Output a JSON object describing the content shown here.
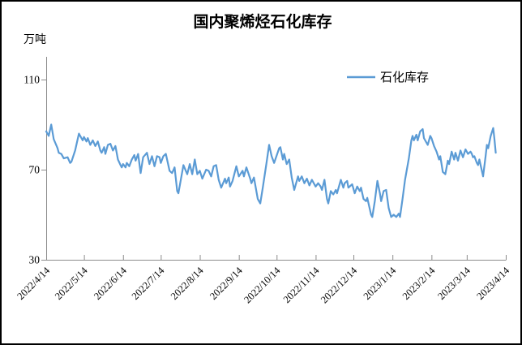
{
  "chart_data": {
    "type": "line",
    "title": "国内聚烯烃石化库存",
    "unit_label": "万吨",
    "legend": {
      "label": "石化库存",
      "position": "top-right-inside"
    },
    "series_color": "#5B9BD5",
    "axis_color": "#8C8C8C",
    "grid": false,
    "ylim": [
      30,
      110
    ],
    "yticks": [
      30,
      70,
      110
    ],
    "x_total_days": 365,
    "x_tick_labels": [
      "2022/4/14",
      "2022/5/14",
      "2022/6/14",
      "2022/7/14",
      "2022/8/14",
      "2022/9/14",
      "2022/10/14",
      "2022/11/14",
      "2022/12/14",
      "2023/1/14",
      "2023/2/14",
      "2023/3/14",
      "2023/4/14"
    ],
    "x_tick_days": [
      0,
      30,
      61,
      91,
      122,
      153,
      183,
      214,
      244,
      275,
      306,
      334,
      365
    ],
    "points_day_value": [
      [
        0,
        87
      ],
      [
        2,
        85
      ],
      [
        4,
        90
      ],
      [
        6,
        83.5
      ],
      [
        9,
        79.5
      ],
      [
        10,
        77.5
      ],
      [
        12,
        77
      ],
      [
        14,
        75
      ],
      [
        17,
        75.5
      ],
      [
        19,
        73
      ],
      [
        20,
        73.5
      ],
      [
        23,
        78.5
      ],
      [
        25,
        83.5
      ],
      [
        26,
        86
      ],
      [
        29,
        83
      ],
      [
        30,
        84.5
      ],
      [
        32,
        82.5
      ],
      [
        33,
        84
      ],
      [
        35,
        81
      ],
      [
        37,
        83
      ],
      [
        39,
        80.5
      ],
      [
        41,
        82.5
      ],
      [
        43,
        78.5
      ],
      [
        44,
        77.5
      ],
      [
        46,
        80
      ],
      [
        47,
        77
      ],
      [
        49,
        81
      ],
      [
        51,
        81.5
      ],
      [
        53,
        78.5
      ],
      [
        55,
        80.5
      ],
      [
        57,
        74.5
      ],
      [
        59,
        72
      ],
      [
        60,
        71
      ],
      [
        61,
        72.5
      ],
      [
        63,
        71
      ],
      [
        64,
        73
      ],
      [
        66,
        71.5
      ],
      [
        68,
        74.5
      ],
      [
        70,
        76.5
      ],
      [
        71,
        74
      ],
      [
        73,
        77
      ],
      [
        75,
        68.5
      ],
      [
        77,
        75.5
      ],
      [
        80,
        77.5
      ],
      [
        82,
        72.5
      ],
      [
        84,
        76
      ],
      [
        86,
        71.5
      ],
      [
        88,
        76
      ],
      [
        90,
        75.5
      ],
      [
        91,
        73
      ],
      [
        93,
        76
      ],
      [
        95,
        77
      ],
      [
        98,
        69.5
      ],
      [
        100,
        68.5
      ],
      [
        102,
        71
      ],
      [
        104,
        60.5
      ],
      [
        105,
        59.5
      ],
      [
        109,
        72
      ],
      [
        112,
        68
      ],
      [
        114,
        72.5
      ],
      [
        116,
        68
      ],
      [
        118,
        74.5
      ],
      [
        120,
        68
      ],
      [
        122,
        69.5
      ],
      [
        124,
        66
      ],
      [
        127,
        70
      ],
      [
        129,
        69.5
      ],
      [
        131,
        67
      ],
      [
        133,
        71.5
      ],
      [
        135,
        72
      ],
      [
        137,
        65.5
      ],
      [
        139,
        62
      ],
      [
        142,
        66
      ],
      [
        143,
        64
      ],
      [
        145,
        66.5
      ],
      [
        146,
        62.5
      ],
      [
        148,
        65
      ],
      [
        151,
        71.5
      ],
      [
        153,
        67
      ],
      [
        156,
        69.5
      ],
      [
        157,
        67
      ],
      [
        159,
        71
      ],
      [
        162,
        66
      ],
      [
        163,
        64
      ],
      [
        165,
        66.5
      ],
      [
        168,
        57
      ],
      [
        170,
        55
      ],
      [
        172,
        62
      ],
      [
        175,
        73
      ],
      [
        177,
        81
      ],
      [
        179,
        76
      ],
      [
        181,
        73
      ],
      [
        185,
        79.5
      ],
      [
        186,
        80
      ],
      [
        188,
        74.5
      ],
      [
        189,
        77
      ],
      [
        191,
        72.5
      ],
      [
        193,
        74.5
      ],
      [
        195,
        66.5
      ],
      [
        197,
        61
      ],
      [
        200,
        67
      ],
      [
        201,
        65
      ],
      [
        203,
        67
      ],
      [
        205,
        64
      ],
      [
        207,
        66
      ],
      [
        209,
        63
      ],
      [
        211,
        65.5
      ],
      [
        214,
        62.5
      ],
      [
        216,
        64
      ],
      [
        218,
        62.5
      ],
      [
        219,
        61
      ],
      [
        221,
        65.5
      ],
      [
        223,
        57
      ],
      [
        224,
        55
      ],
      [
        226,
        60.5
      ],
      [
        228,
        59
      ],
      [
        230,
        61
      ],
      [
        231,
        59.5
      ],
      [
        234,
        65.5
      ],
      [
        236,
        62
      ],
      [
        237,
        64
      ],
      [
        239,
        65
      ],
      [
        240,
        62
      ],
      [
        243,
        63.5
      ],
      [
        245,
        59.5
      ],
      [
        247,
        62.5
      ],
      [
        249,
        60.5
      ],
      [
        250,
        62
      ],
      [
        252,
        57
      ],
      [
        254,
        56
      ],
      [
        255,
        57.5
      ],
      [
        258,
        50
      ],
      [
        259,
        49
      ],
      [
        261,
        56
      ],
      [
        263,
        65
      ],
      [
        265,
        59.5
      ],
      [
        266,
        56
      ],
      [
        268,
        60.5
      ],
      [
        270,
        61
      ],
      [
        272,
        53
      ],
      [
        274,
        49
      ],
      [
        276,
        50
      ],
      [
        278,
        49
      ],
      [
        280,
        50.5
      ],
      [
        281,
        49
      ],
      [
        283,
        57
      ],
      [
        285,
        65.5
      ],
      [
        288,
        75
      ],
      [
        290,
        83
      ],
      [
        291,
        85
      ],
      [
        292,
        83
      ],
      [
        294,
        85.5
      ],
      [
        295,
        83
      ],
      [
        297,
        87
      ],
      [
        299,
        88
      ],
      [
        300,
        84
      ],
      [
        303,
        81
      ],
      [
        305,
        85
      ],
      [
        306,
        84
      ],
      [
        308,
        80.5
      ],
      [
        310,
        78
      ],
      [
        312,
        74.5
      ],
      [
        313,
        76
      ],
      [
        315,
        69
      ],
      [
        317,
        68
      ],
      [
        319,
        74
      ],
      [
        320,
        72.5
      ],
      [
        322,
        78
      ],
      [
        324,
        74.5
      ],
      [
        325,
        77.5
      ],
      [
        327,
        74
      ],
      [
        329,
        78.5
      ],
      [
        331,
        75.5
      ],
      [
        333,
        79
      ],
      [
        335,
        77
      ],
      [
        337,
        78
      ],
      [
        338,
        77
      ],
      [
        339,
        75.5
      ],
      [
        340,
        76
      ],
      [
        342,
        73
      ],
      [
        343,
        72
      ],
      [
        344,
        74.5
      ],
      [
        347,
        67
      ],
      [
        349,
        76
      ],
      [
        350,
        81
      ],
      [
        351,
        79.5
      ],
      [
        353,
        85
      ],
      [
        355,
        88.5
      ],
      [
        356,
        83.5
      ],
      [
        357,
        77.5
      ]
    ]
  },
  "colors": {
    "background": "#FFFFFF",
    "border": "#000000",
    "text": "#000000",
    "series": "#5B9BD5",
    "axis": "#8C8C8C"
  }
}
